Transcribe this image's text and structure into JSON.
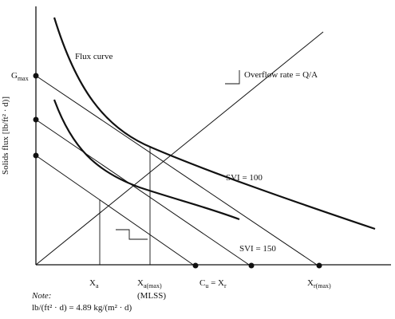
{
  "figure": {
    "y_axis_label": "Solids flux [lb/ft² · d)]",
    "flux_curve_label": "Flux curve",
    "overflow_label": "Overflow rate = Q/A",
    "gmax": {
      "main": "G",
      "sub": "max"
    },
    "svi_100": "SVI = 100",
    "svi_150": "SVI = 150",
    "xa": {
      "main": "X",
      "sub": "a"
    },
    "xa_max": {
      "main": "X",
      "sub": "a(max)"
    },
    "mlss": "(MLSS)",
    "cu": {
      "main": "C",
      "sub": "u",
      "rest": " = X",
      "sub2": "r"
    },
    "xr_max": {
      "main": "X",
      "sub": "r(max)"
    },
    "note_title": "Note:",
    "note_text": "lb/(ft² · d) = 4.89 kg/(m² · d)"
  }
}
